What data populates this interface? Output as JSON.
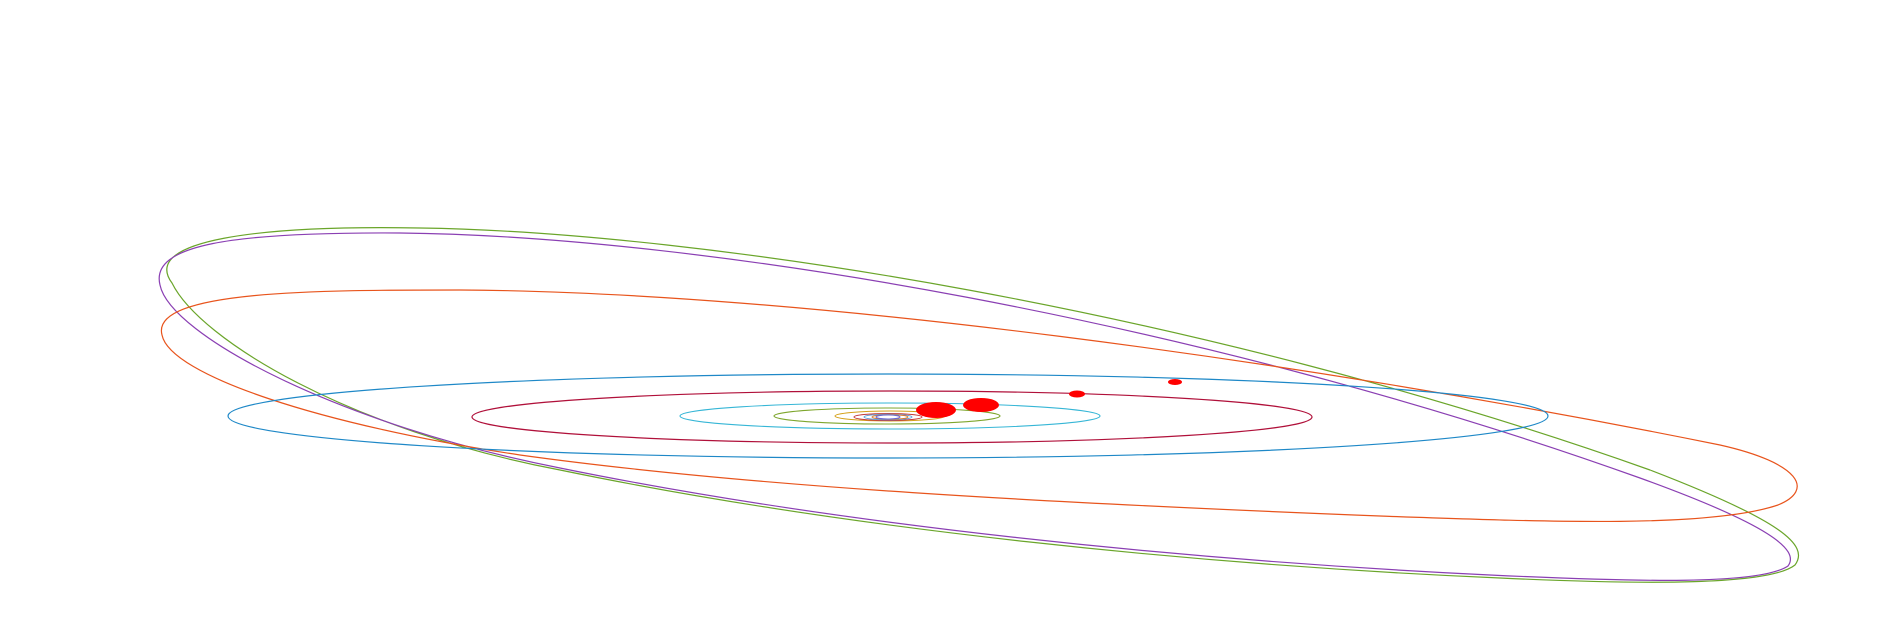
{
  "scene": {
    "background": "#ffffff",
    "orbits": [
      {
        "id": "orbit-1",
        "color": "#6b6bd6"
      },
      {
        "id": "orbit-2",
        "color": "#d97a2b"
      },
      {
        "id": "orbit-3",
        "color": "#5e9fd9"
      },
      {
        "id": "orbit-4",
        "color": "#c43a3a"
      },
      {
        "id": "orbit-5",
        "color": "#d4a017"
      },
      {
        "id": "orbit-6",
        "color": "#7ea62d"
      },
      {
        "id": "orbit-7",
        "color": "#36b6d6"
      },
      {
        "id": "orbit-8",
        "color": "#b0103a"
      },
      {
        "id": "orbit-9",
        "color": "#1e88c7"
      },
      {
        "id": "orbit-10",
        "color": "#e8541c"
      },
      {
        "id": "orbit-11",
        "color": "#8a3fb3"
      },
      {
        "id": "orbit-12",
        "color": "#6aa52a"
      }
    ],
    "bodies_color": "#ff0000",
    "central_body_color": "#ff0000"
  }
}
